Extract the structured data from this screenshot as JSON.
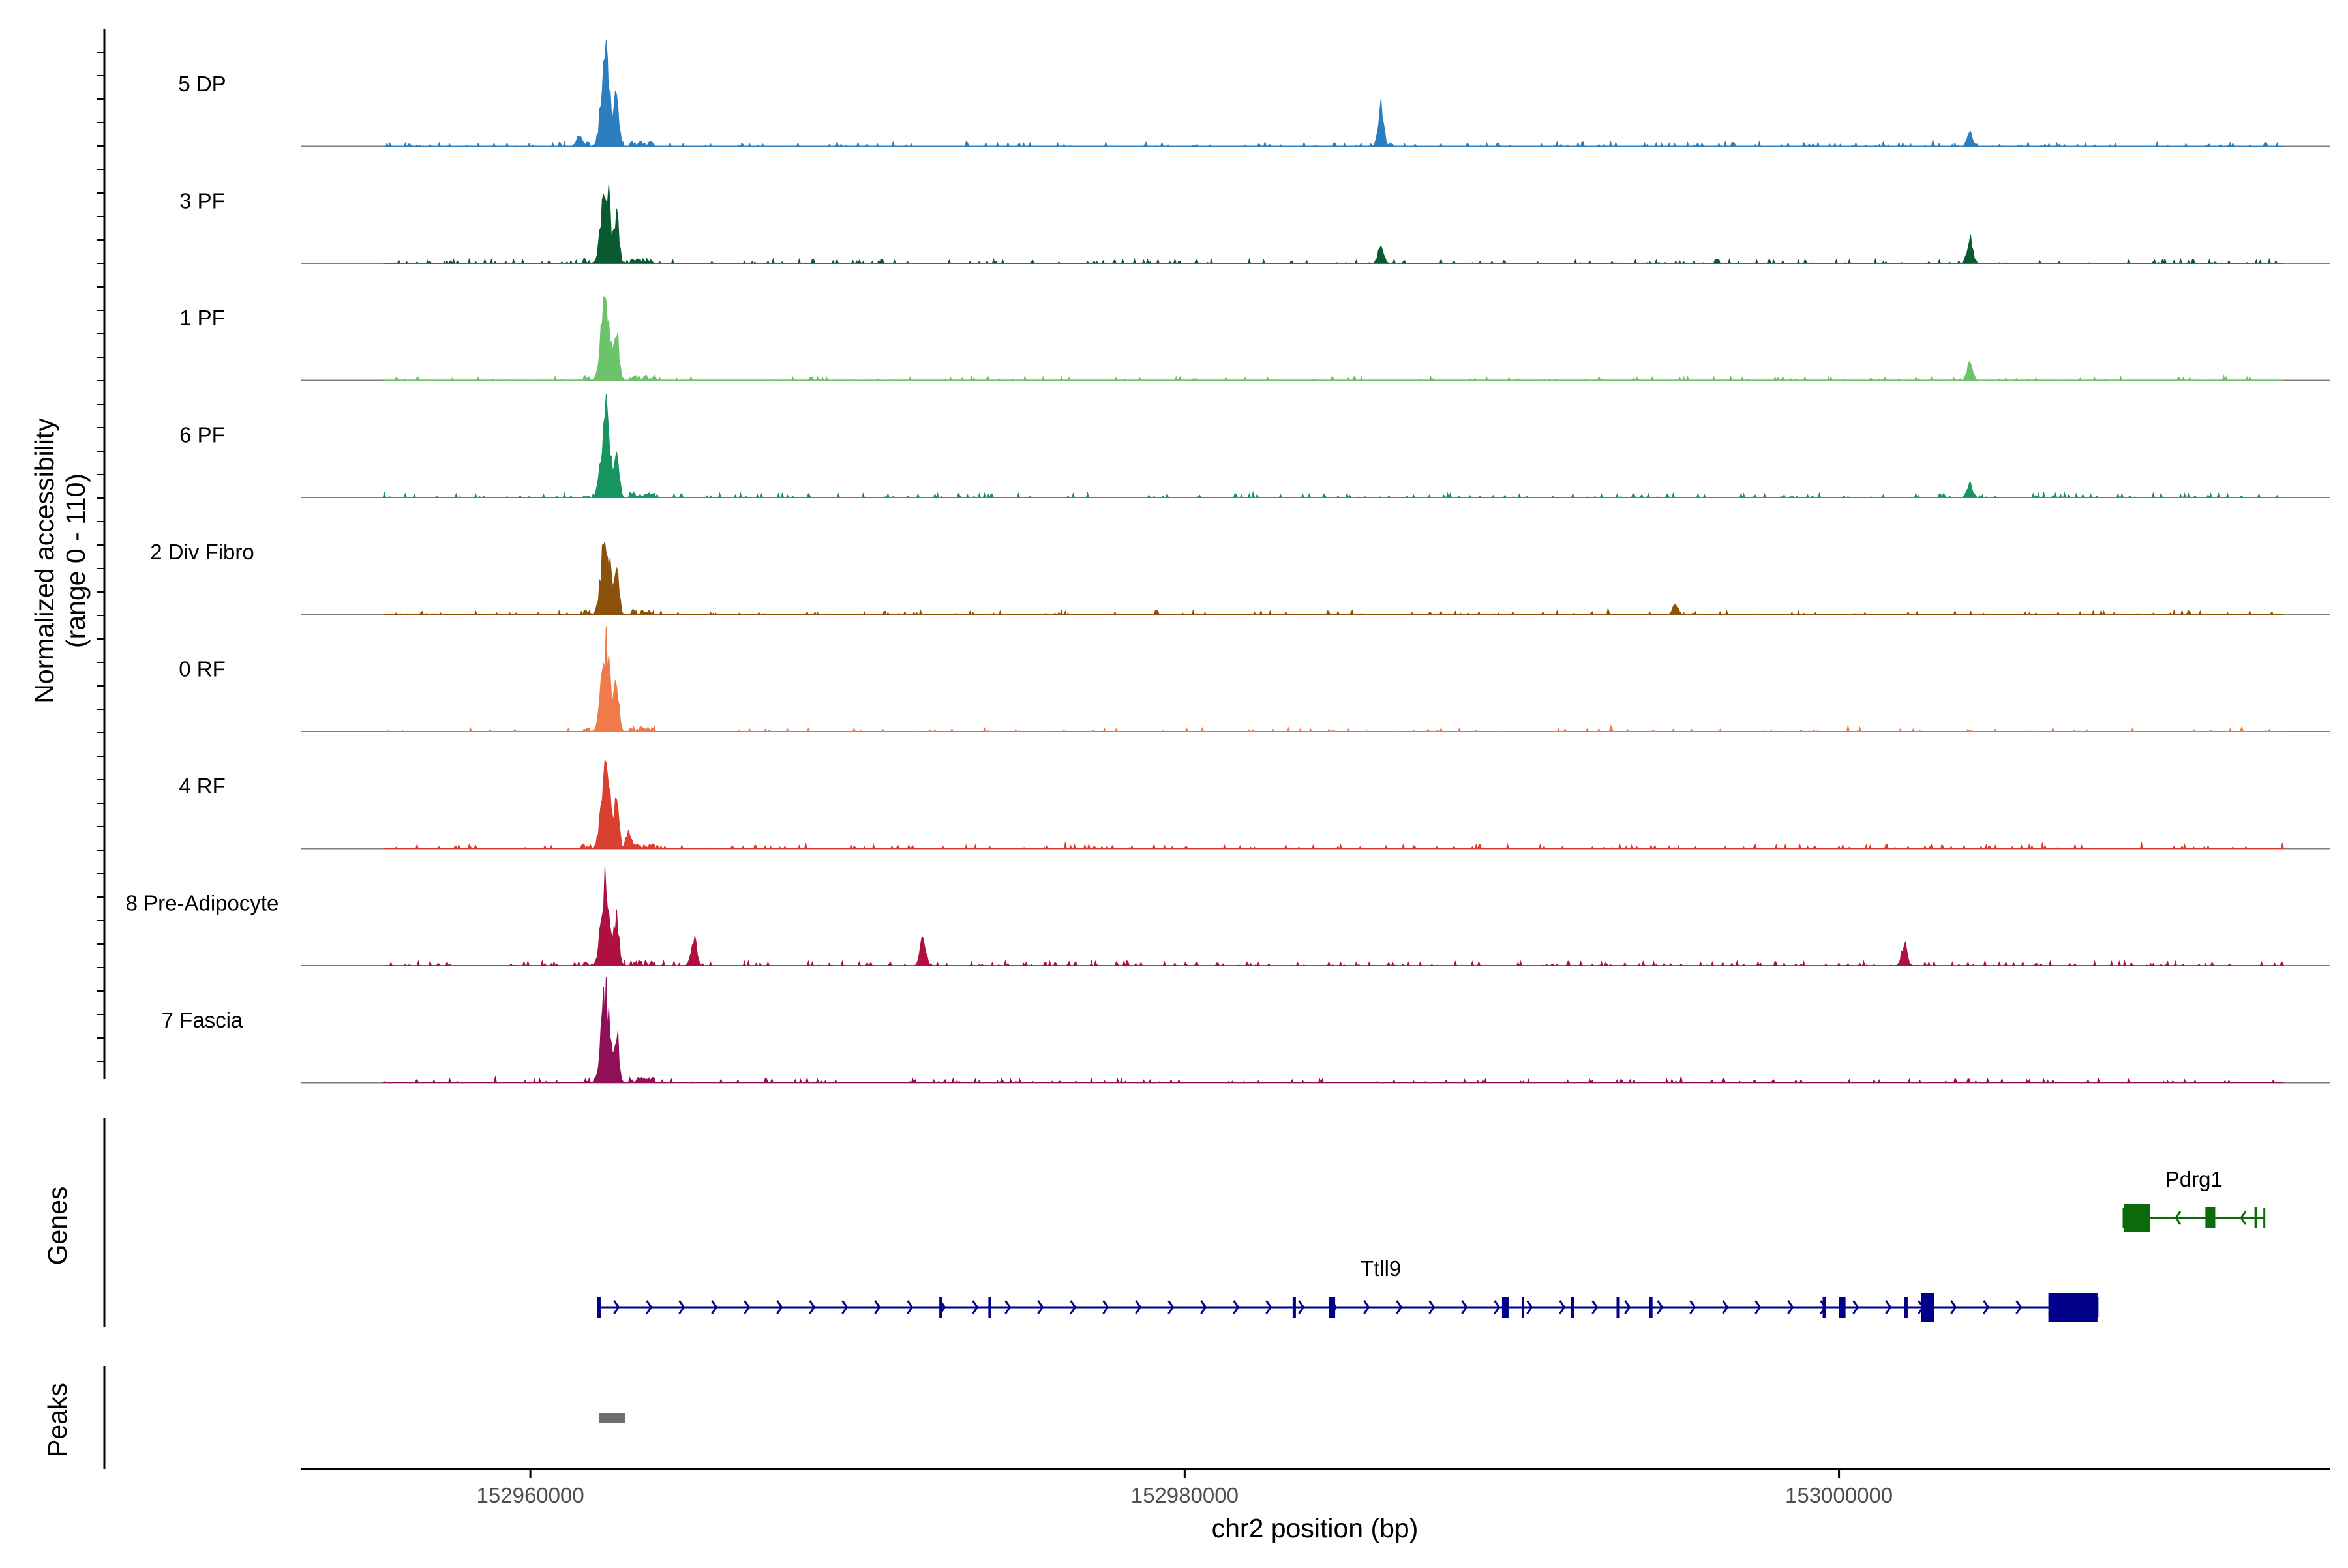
{
  "chart_data": {
    "type": "area",
    "title": "",
    "ylabel_line1": "Normalized accessibility",
    "ylabel_line2": "(range 0 - 110)",
    "xlabel": "chr2 position (bp)",
    "xlim": [
      152953000,
      153015000
    ],
    "x_ticks": [
      152960000,
      152980000,
      153000000
    ],
    "x_tick_labels": [
      "152960000",
      "152980000",
      "153000000"
    ],
    "ylim": [
      0,
      110
    ],
    "tracks": [
      {
        "name": "5 DP",
        "color": "#2b7fc0",
        "peak": 1.0,
        "rest": 0.45,
        "seed": 11,
        "extra_peaks": [
          [
            152986000,
            0.45
          ],
          [
            152961500,
            0.15
          ],
          [
            153004000,
            0.15
          ]
        ]
      },
      {
        "name": "3 PF",
        "color": "#0a5a30",
        "peak": 1.0,
        "rest": 0.35,
        "seed": 23,
        "extra_peaks": [
          [
            152986000,
            0.2
          ],
          [
            153004000,
            0.28
          ]
        ]
      },
      {
        "name": "1 PF",
        "color": "#6cc36a",
        "peak": 1.0,
        "rest": 0.3,
        "seed": 37,
        "extra_peaks": [
          [
            153004000,
            0.2
          ]
        ]
      },
      {
        "name": "6 PF",
        "color": "#169560",
        "peak": 1.0,
        "rest": 0.4,
        "seed": 41,
        "extra_peaks": [
          [
            153004000,
            0.15
          ]
        ]
      },
      {
        "name": "2 Div Fibro",
        "color": "#8c510a",
        "peak": 1.0,
        "rest": 0.35,
        "seed": 53,
        "extra_peaks": [
          [
            152995000,
            0.12
          ]
        ]
      },
      {
        "name": "0 RF",
        "color": "#f07a4a",
        "peak": 1.0,
        "rest": 0.2,
        "seed": 61,
        "extra_peaks": []
      },
      {
        "name": "4 RF",
        "color": "#d94030",
        "peak": 1.0,
        "rest": 0.35,
        "seed": 71,
        "extra_peaks": [
          [
            152963000,
            0.2
          ]
        ]
      },
      {
        "name": "8 Pre-Adipocyte",
        "color": "#b01040",
        "peak": 1.0,
        "rest": 0.5,
        "seed": 83,
        "extra_peaks": [
          [
            152965000,
            0.3
          ],
          [
            152972000,
            0.3
          ],
          [
            153002000,
            0.25
          ]
        ]
      },
      {
        "name": "7 Fascia",
        "color": "#8f0f58",
        "peak": 1.0,
        "rest": 0.35,
        "seed": 97,
        "extra_peaks": []
      }
    ],
    "main_peak_position": 152962200,
    "genes_label": "Genes",
    "peaks_label": "Peaks",
    "genes": [
      {
        "name": "Ttll9",
        "strand": "+",
        "color": "#00008b",
        "start": 152962100,
        "end": 153007900,
        "exons": [
          [
            152962050,
            152962150
          ],
          [
            152972500,
            152972560
          ],
          [
            152974000,
            152974050
          ],
          [
            152983300,
            152983400
          ],
          [
            152984400,
            152984600
          ],
          [
            152989700,
            152989900
          ],
          [
            152990300,
            152990370
          ],
          [
            152991800,
            152991900
          ],
          [
            152993200,
            152993300
          ],
          [
            152994200,
            152994300
          ],
          [
            152999500,
            152999600
          ],
          [
            153000000,
            153000200
          ],
          [
            153002000,
            153002100
          ],
          [
            153002500,
            153002900
          ],
          [
            153006400,
            153007900
          ]
        ]
      },
      {
        "name": "Pdrg1",
        "strand": "-",
        "color": "#0b6b0b",
        "start": 153008700,
        "end": 153013000,
        "exons": [
          [
            153008700,
            153009500
          ],
          [
            153011200,
            153011500
          ],
          [
            153012700,
            153012780
          ]
        ]
      }
    ],
    "peaks": [
      [
        152962100,
        152962900
      ]
    ]
  }
}
